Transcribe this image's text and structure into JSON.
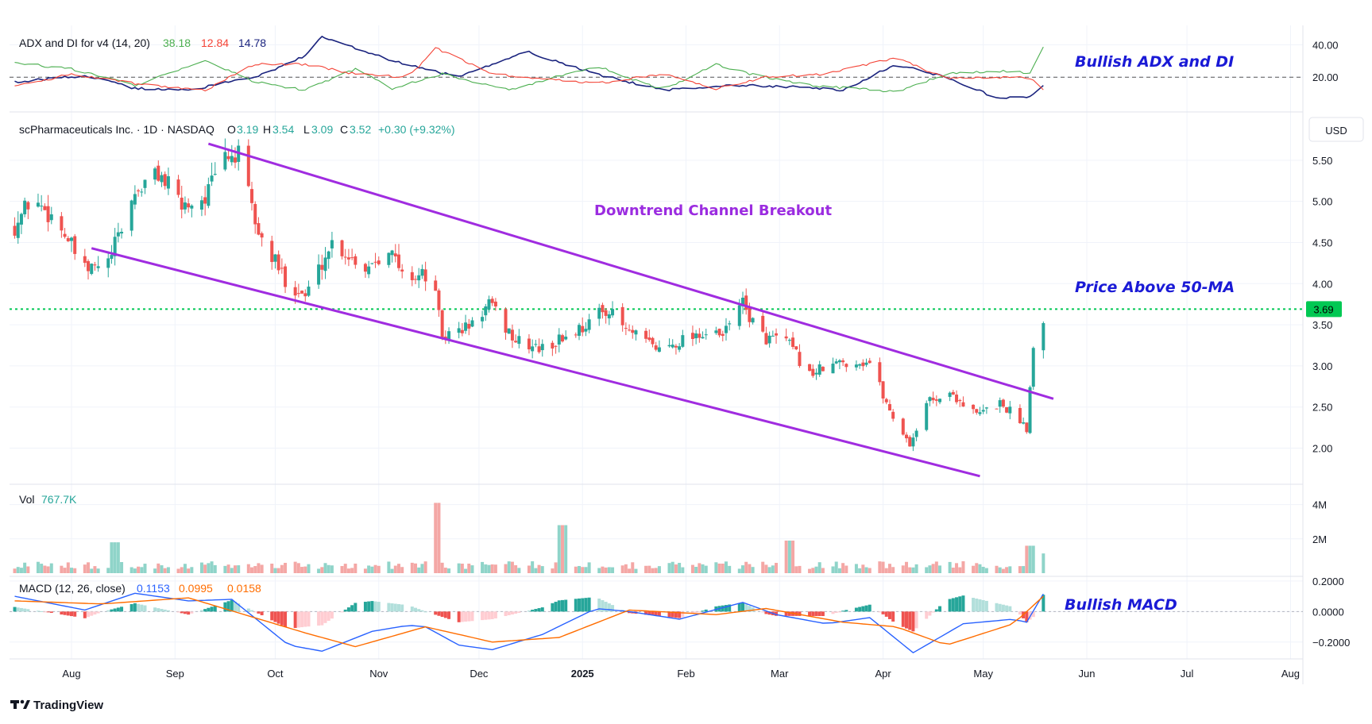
{
  "colors": {
    "up": "#26a69a",
    "down": "#ef5350",
    "up_vol": "#8fd4c9",
    "down_vol": "#f4a7a5",
    "adx": "#1a237e",
    "di_plus": "#4caf50",
    "di_minus": "#f44336",
    "macd": "#2962ff",
    "signal": "#ff6d00",
    "channel": "#9c27b0",
    "ma_line": "#00c853",
    "annot_blue": "#1a1ad6"
  },
  "legend": {
    "adx_title": "ADX and DI for v4 (14, 20)",
    "adx_v1": "38.18",
    "adx_v2": "12.84",
    "adx_v3": "14.78",
    "main_title": "scPharmaceuticals Inc. · 1D · NASDAQ",
    "o_label": "O",
    "o_val": "3.19",
    "h_label": "H",
    "h_val": "3.54",
    "l_label": "L",
    "l_val": "3.09",
    "c_label": "C",
    "c_val": "3.52",
    "change": "+0.30 (+9.32%)",
    "vol_label": "Vol",
    "vol_val": "767.7K",
    "macd_title": "MACD (12, 26, close)",
    "macd_v1": "0.1153",
    "macd_v2": "0.0995",
    "macd_v3": "0.0158",
    "currency": "USD",
    "ma_value": "3.69"
  },
  "annotations": {
    "adx": "Bullish ADX and DI",
    "channel": "Downtrend Channel Breakout",
    "ma": "Price Above 50-MA",
    "macd": "Bullish MACD"
  },
  "branding": "TradingView",
  "chart_data": [
    {
      "type": "candlestick",
      "name": "price",
      "ylim": [
        1.6,
        6.0
      ],
      "y_ticks": [
        "5.50",
        "5.00",
        "4.50",
        "4.00",
        "3.50",
        "3.00",
        "2.50",
        "2.00"
      ],
      "x_ticks": [
        "Aug",
        "Sep",
        "Oct",
        "Nov",
        "Dec",
        "2025",
        "Feb",
        "Mar",
        "Apr",
        "May",
        "Jun",
        "Jul",
        "Aug"
      ],
      "x_tick_dates": [
        "2024-08-01",
        "2024-09-01",
        "2024-10-01",
        "2024-11-01",
        "2024-12-01",
        "2025-01-01",
        "2025-02-01",
        "2025-03-01",
        "2025-04-01",
        "2025-05-01",
        "2025-06-01",
        "2025-07-01",
        "2025-08-01"
      ],
      "close_anchors": [
        [
          "2024-07-15",
          4.7
        ],
        [
          "2024-07-20",
          5.05
        ],
        [
          "2024-07-28",
          4.75
        ],
        [
          "2024-08-05",
          4.15
        ],
        [
          "2024-08-12",
          4.25
        ],
        [
          "2024-08-20",
          5.1
        ],
        [
          "2024-08-27",
          5.35
        ],
        [
          "2024-09-03",
          4.95
        ],
        [
          "2024-09-10",
          5.05
        ],
        [
          "2024-09-16",
          5.55
        ],
        [
          "2024-09-20",
          5.55
        ],
        [
          "2024-09-26",
          4.6
        ],
        [
          "2024-10-04",
          4.05
        ],
        [
          "2024-10-10",
          3.85
        ],
        [
          "2024-10-18",
          4.5
        ],
        [
          "2024-10-28",
          4.2
        ],
        [
          "2024-11-04",
          4.45
        ],
        [
          "2024-11-08",
          4.1
        ],
        [
          "2024-11-15",
          4.1
        ],
        [
          "2024-11-18",
          3.85
        ],
        [
          "2024-11-20",
          3.35
        ],
        [
          "2024-11-29",
          3.5
        ],
        [
          "2024-12-04",
          3.75
        ],
        [
          "2024-12-12",
          3.3
        ],
        [
          "2024-12-20",
          3.2
        ],
        [
          "2025-01-02",
          3.5
        ],
        [
          "2025-01-08",
          3.7
        ],
        [
          "2025-01-15",
          3.4
        ],
        [
          "2025-01-24",
          3.2
        ],
        [
          "2025-02-04",
          3.4
        ],
        [
          "2025-02-12",
          3.35
        ],
        [
          "2025-02-17",
          3.8
        ],
        [
          "2025-02-24",
          3.35
        ],
        [
          "2025-03-03",
          3.3
        ],
        [
          "2025-03-10",
          2.9
        ],
        [
          "2025-03-20",
          3.05
        ],
        [
          "2025-03-28",
          3.05
        ],
        [
          "2025-04-03",
          2.45
        ],
        [
          "2025-04-09",
          2.05
        ],
        [
          "2025-04-15",
          2.6
        ],
        [
          "2025-04-22",
          2.65
        ],
        [
          "2025-04-29",
          2.4
        ],
        [
          "2025-05-06",
          2.55
        ],
        [
          "2025-05-12",
          2.35
        ],
        [
          "2025-05-14",
          2.25
        ],
        [
          "2025-05-15",
          2.75
        ],
        [
          "2025-05-16",
          3.22
        ],
        [
          "2025-05-19",
          3.52
        ]
      ],
      "last": {
        "date": "2025-05-19",
        "open": 3.19,
        "high": 3.54,
        "low": 3.09,
        "close": 3.52
      }
    },
    {
      "type": "line",
      "name": "channel",
      "upper": [
        [
          "2024-09-11",
          5.7
        ],
        [
          "2025-05-22",
          2.6
        ]
      ],
      "lower": [
        [
          "2024-08-07",
          4.43
        ],
        [
          "2025-04-30",
          1.66
        ]
      ],
      "ma_level": 3.69
    },
    {
      "type": "bar",
      "name": "volume",
      "ylim": [
        0,
        5000000
      ],
      "y_ticks": [
        "4M",
        "2M"
      ],
      "last": 767700,
      "spikes": [
        [
          "2024-08-14",
          1800000
        ],
        [
          "2024-11-18",
          4100000
        ],
        [
          "2024-12-26",
          2800000
        ],
        [
          "2025-03-04",
          1900000
        ],
        [
          "2025-05-15",
          1600000
        ]
      ]
    },
    {
      "type": "line",
      "name": "adx",
      "ylim": [
        0,
        50
      ],
      "y_ticks": [
        "40.00",
        "20.00"
      ],
      "threshold": 20,
      "series": [
        {
          "label": "adx",
          "anchors": [
            [
              "2024-07-15",
              17
            ],
            [
              "2024-08-05",
              21
            ],
            [
              "2024-08-20",
              13
            ],
            [
              "2024-09-05",
              12
            ],
            [
              "2024-09-25",
              20
            ],
            [
              "2024-10-10",
              33
            ],
            [
              "2024-10-15",
              45
            ],
            [
              "2024-11-05",
              30
            ],
            [
              "2024-11-25",
              20
            ],
            [
              "2024-12-15",
              36
            ],
            [
              "2025-01-05",
              22
            ],
            [
              "2025-01-25",
              12
            ],
            [
              "2025-02-15",
              15
            ],
            [
              "2025-03-05",
              14
            ],
            [
              "2025-03-20",
              12
            ],
            [
              "2025-04-05",
              28
            ],
            [
              "2025-04-20",
              20
            ],
            [
              "2025-05-05",
              7
            ],
            [
              "2025-05-15",
              8
            ],
            [
              "2025-05-19",
              14.78
            ]
          ]
        },
        {
          "label": "di_plus",
          "anchors": [
            [
              "2024-07-15",
              29
            ],
            [
              "2024-08-01",
              25
            ],
            [
              "2024-08-20",
              15
            ],
            [
              "2024-09-10",
              30
            ],
            [
              "2024-09-25",
              17
            ],
            [
              "2024-10-10",
              12
            ],
            [
              "2024-10-25",
              25
            ],
            [
              "2024-11-05",
              13
            ],
            [
              "2024-11-20",
              22
            ],
            [
              "2024-12-10",
              12
            ],
            [
              "2025-01-05",
              27
            ],
            [
              "2025-01-25",
              12
            ],
            [
              "2025-02-10",
              28
            ],
            [
              "2025-02-20",
              22
            ],
            [
              "2025-03-10",
              15
            ],
            [
              "2025-04-05",
              11
            ],
            [
              "2025-04-20",
              22
            ],
            [
              "2025-05-10",
              24
            ],
            [
              "2025-05-15",
              22
            ],
            [
              "2025-05-19",
              38.18
            ]
          ]
        },
        {
          "label": "di_minus",
          "anchors": [
            [
              "2024-07-15",
              14
            ],
            [
              "2024-08-01",
              22
            ],
            [
              "2024-08-20",
              16
            ],
            [
              "2024-09-10",
              12
            ],
            [
              "2024-09-25",
              28
            ],
            [
              "2024-10-10",
              28
            ],
            [
              "2024-10-25",
              22
            ],
            [
              "2024-11-10",
              20
            ],
            [
              "2024-11-18",
              38
            ],
            [
              "2024-12-05",
              22
            ],
            [
              "2025-01-05",
              16
            ],
            [
              "2025-01-25",
              22
            ],
            [
              "2025-02-10",
              13
            ],
            [
              "2025-02-25",
              20
            ],
            [
              "2025-03-15",
              22
            ],
            [
              "2025-04-05",
              32
            ],
            [
              "2025-04-20",
              19
            ],
            [
              "2025-05-10",
              20
            ],
            [
              "2025-05-15",
              19
            ],
            [
              "2025-05-19",
              12.84
            ]
          ]
        }
      ]
    },
    {
      "type": "bar",
      "name": "macd",
      "ylim": [
        -0.3,
        0.21
      ],
      "y_ticks": [
        "0.2000",
        "0.0000",
        "−0.2000"
      ],
      "macd_anchors": [
        [
          "2024-07-15",
          0.1
        ],
        [
          "2024-08-05",
          0.01
        ],
        [
          "2024-08-20",
          0.12
        ],
        [
          "2024-09-05",
          0.07
        ],
        [
          "2024-09-18",
          0.08
        ],
        [
          "2024-10-05",
          -0.22
        ],
        [
          "2024-10-15",
          -0.26
        ],
        [
          "2024-10-30",
          -0.13
        ],
        [
          "2024-11-10",
          -0.09
        ],
        [
          "2024-11-15",
          -0.1
        ],
        [
          "2024-11-25",
          -0.22
        ],
        [
          "2024-12-05",
          -0.25
        ],
        [
          "2024-12-20",
          -0.15
        ],
        [
          "2025-01-05",
          0.02
        ],
        [
          "2025-01-15",
          0.0
        ],
        [
          "2025-01-30",
          -0.05
        ],
        [
          "2025-02-18",
          0.06
        ],
        [
          "2025-02-28",
          -0.02
        ],
        [
          "2025-03-15",
          -0.08
        ],
        [
          "2025-03-28",
          -0.04
        ],
        [
          "2025-04-10",
          -0.27
        ],
        [
          "2025-04-25",
          -0.08
        ],
        [
          "2025-05-10",
          -0.05
        ],
        [
          "2025-05-14",
          -0.07
        ],
        [
          "2025-05-19",
          0.1153
        ]
      ],
      "signal_anchors": [
        [
          "2024-07-15",
          0.07
        ],
        [
          "2024-08-10",
          0.05
        ],
        [
          "2024-09-05",
          0.09
        ],
        [
          "2024-10-10",
          -0.14
        ],
        [
          "2024-10-25",
          -0.23
        ],
        [
          "2024-11-15",
          -0.1
        ],
        [
          "2024-12-05",
          -0.2
        ],
        [
          "2024-12-25",
          -0.17
        ],
        [
          "2025-01-15",
          0.01
        ],
        [
          "2025-02-10",
          -0.02
        ],
        [
          "2025-02-25",
          0.02
        ],
        [
          "2025-03-20",
          -0.07
        ],
        [
          "2025-04-05",
          -0.1
        ],
        [
          "2025-04-20",
          -0.22
        ],
        [
          "2025-05-10",
          -0.08
        ],
        [
          "2025-05-19",
          0.0995
        ]
      ],
      "last_hist": 0.0158
    }
  ]
}
